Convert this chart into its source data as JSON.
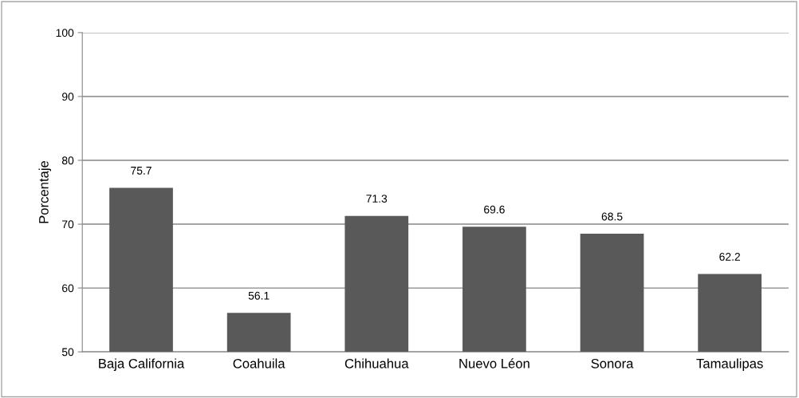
{
  "chart_data": {
    "type": "bar",
    "ylabel": "Porcentaje",
    "categories": [
      "Baja California",
      "Coahuila",
      "Chihuahua",
      "Nuevo Léon",
      "Sonora",
      "Tamaulipas"
    ],
    "values": [
      75.7,
      56.1,
      71.3,
      69.6,
      68.5,
      62.2
    ],
    "color": "#595959",
    "ylim": [
      50,
      100
    ],
    "yticks": [
      50,
      60,
      70,
      80,
      90,
      100
    ],
    "grid": "y",
    "data_labels": true
  }
}
